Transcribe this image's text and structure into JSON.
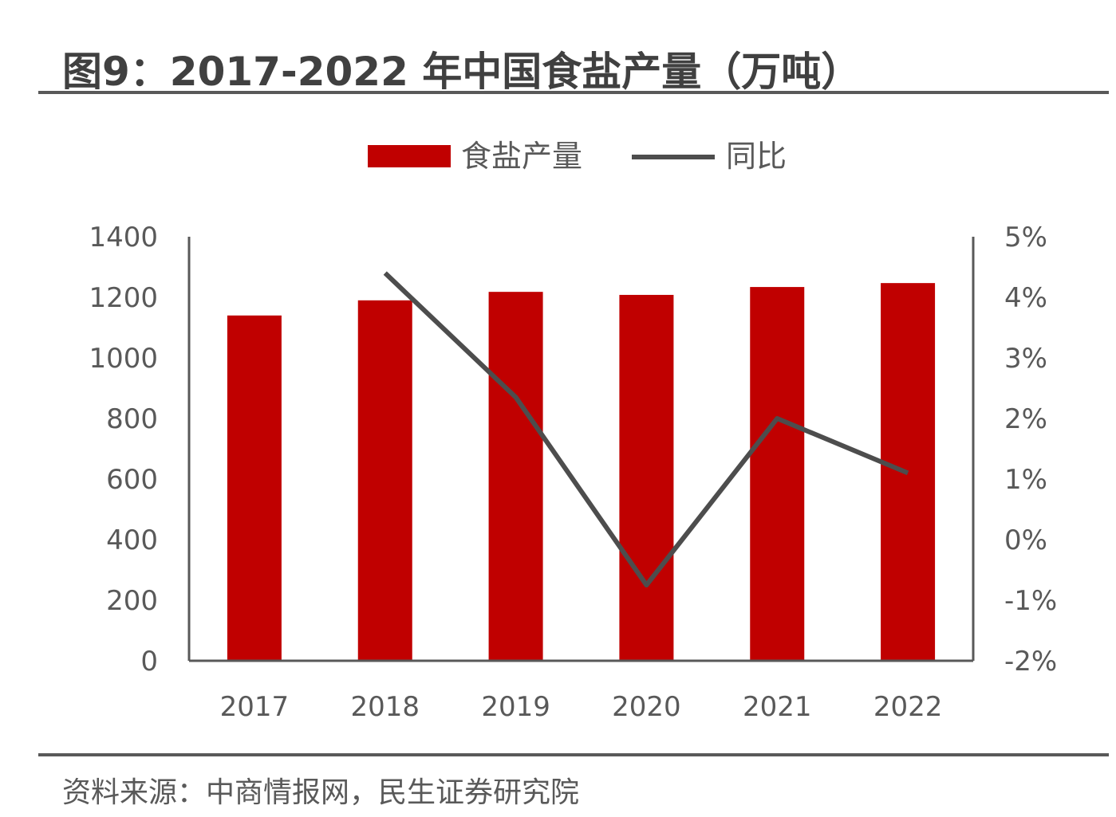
{
  "title": "图9：2017-2022 年中国食盐产量（万吨）",
  "source": "资料来源：中商情报网，民生证券研究院",
  "colors": {
    "bar": "#c00000",
    "line": "#4d4d4d",
    "axis": "#595959",
    "text": "#595959"
  },
  "chart_data": {
    "type": "bar",
    "categories": [
      "2017",
      "2018",
      "2019",
      "2020",
      "2021",
      "2022"
    ],
    "series": [
      {
        "name": "食盐产量",
        "type": "bar",
        "axis": "left",
        "values": [
          1140,
          1190,
          1218,
          1208,
          1234,
          1247
        ]
      },
      {
        "name": "同比",
        "type": "line",
        "axis": "right",
        "values": [
          null,
          4.4,
          2.35,
          -0.75,
          2.0,
          1.1
        ]
      }
    ],
    "y_left": {
      "min": 0,
      "max": 1400,
      "ticks": [
        "0",
        "200",
        "400",
        "600",
        "800",
        "1000",
        "1200",
        "1400"
      ]
    },
    "y_right": {
      "min": -2,
      "max": 5,
      "ticks": [
        "-2%",
        "-1%",
        "0%",
        "1%",
        "2%",
        "3%",
        "4%",
        "5%"
      ]
    },
    "legend": {
      "position": "top"
    },
    "grid": false
  }
}
